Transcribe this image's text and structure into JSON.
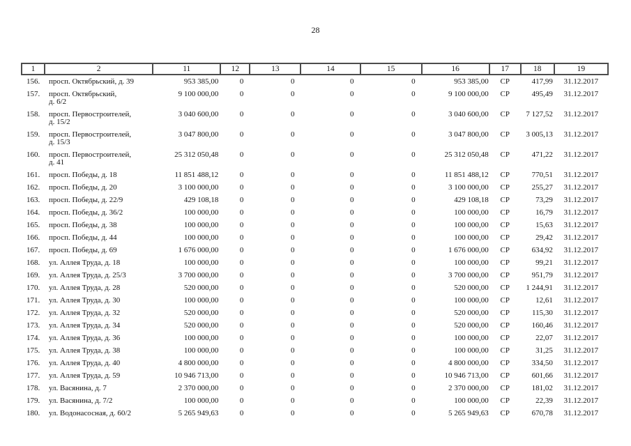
{
  "page": {
    "number": "28"
  },
  "table": {
    "headers": [
      "1",
      "2",
      "11",
      "12",
      "13",
      "14",
      "15",
      "16",
      "17",
      "18",
      "19"
    ],
    "rows": [
      {
        "cells": [
          "156.",
          "просп. Октябрьский, д. 39",
          "953 385,00",
          "0",
          "0",
          "0",
          "0",
          "953 385,00",
          "СР",
          "417,99",
          "31.12.2017"
        ]
      },
      {
        "cells": [
          "157.",
          "просп. Октябрьский,\nд. 6/2",
          "9 100 000,00",
          "0",
          "0",
          "0",
          "0",
          "9 100 000,00",
          "СР",
          "495,49",
          "31.12.2017"
        ]
      },
      {
        "cells": [
          "158.",
          "просп. Первостроителей,\nд. 15/2",
          "3 040 600,00",
          "0",
          "0",
          "0",
          "0",
          "3 040 600,00",
          "СР",
          "7 127,52",
          "31.12.2017"
        ]
      },
      {
        "cells": [
          "159.",
          "просп. Первостроителей,\nд. 15/3",
          "3 047 800,00",
          "0",
          "0",
          "0",
          "0",
          "3 047 800,00",
          "СР",
          "3 005,13",
          "31.12.2017"
        ]
      },
      {
        "cells": [
          "160.",
          "просп. Первостроителей,\nд. 41",
          "25 312 050,48",
          "0",
          "0",
          "0",
          "0",
          "25 312 050,48",
          "СР",
          "471,22",
          "31.12.2017"
        ]
      },
      {
        "cells": [
          "161.",
          "просп. Победы, д. 18",
          "11 851 488,12",
          "0",
          "0",
          "0",
          "0",
          "11 851 488,12",
          "СР",
          "770,51",
          "31.12.2017"
        ]
      },
      {
        "cells": [
          "162.",
          "просп. Победы, д. 20",
          "3 100 000,00",
          "0",
          "0",
          "0",
          "0",
          "3 100 000,00",
          "СР",
          "255,27",
          "31.12.2017"
        ]
      },
      {
        "cells": [
          "163.",
          "просп. Победы, д. 22/9",
          "429 108,18",
          "0",
          "0",
          "0",
          "0",
          "429 108,18",
          "СР",
          "73,29",
          "31.12.2017"
        ]
      },
      {
        "cells": [
          "164.",
          "просп. Победы, д. 36/2",
          "100 000,00",
          "0",
          "0",
          "0",
          "0",
          "100 000,00",
          "СР",
          "16,79",
          "31.12.2017"
        ]
      },
      {
        "cells": [
          "165.",
          "просп. Победы, д. 38",
          "100 000,00",
          "0",
          "0",
          "0",
          "0",
          "100 000,00",
          "СР",
          "15,63",
          "31.12.2017"
        ]
      },
      {
        "cells": [
          "166.",
          "просп. Победы, д. 44",
          "100 000,00",
          "0",
          "0",
          "0",
          "0",
          "100 000,00",
          "СР",
          "29,42",
          "31.12.2017"
        ]
      },
      {
        "cells": [
          "167.",
          "просп. Победы, д. 69",
          "1 676 000,00",
          "0",
          "0",
          "0",
          "0",
          "1 676 000,00",
          "СР",
          "634,92",
          "31.12.2017"
        ]
      },
      {
        "cells": [
          "168.",
          "ул. Аллея Труда, д. 18",
          "100 000,00",
          "0",
          "0",
          "0",
          "0",
          "100 000,00",
          "СР",
          "99,21",
          "31.12.2017"
        ]
      },
      {
        "cells": [
          "169.",
          "ул. Аллея Труда, д. 25/3",
          "3 700 000,00",
          "0",
          "0",
          "0",
          "0",
          "3 700 000,00",
          "СР",
          "951,79",
          "31.12.2017"
        ]
      },
      {
        "cells": [
          "170.",
          "ул. Аллея Труда, д. 28",
          "520 000,00",
          "0",
          "0",
          "0",
          "0",
          "520 000,00",
          "СР",
          "1 244,91",
          "31.12.2017"
        ]
      },
      {
        "cells": [
          "171.",
          "ул. Аллея Труда, д. 30",
          "100 000,00",
          "0",
          "0",
          "0",
          "0",
          "100 000,00",
          "СР",
          "12,61",
          "31.12.2017"
        ]
      },
      {
        "cells": [
          "172.",
          "ул. Аллея Труда, д. 32",
          "520 000,00",
          "0",
          "0",
          "0",
          "0",
          "520 000,00",
          "СР",
          "115,30",
          "31.12.2017"
        ]
      },
      {
        "cells": [
          "173.",
          "ул. Аллея Труда, д. 34",
          "520 000,00",
          "0",
          "0",
          "0",
          "0",
          "520 000,00",
          "СР",
          "160,46",
          "31.12.2017"
        ]
      },
      {
        "cells": [
          "174.",
          "ул. Аллея Труда, д. 36",
          "100 000,00",
          "0",
          "0",
          "0",
          "0",
          "100 000,00",
          "СР",
          "22,07",
          "31.12.2017"
        ]
      },
      {
        "cells": [
          "175.",
          "ул. Аллея Труда, д. 38",
          "100 000,00",
          "0",
          "0",
          "0",
          "0",
          "100 000,00",
          "СР",
          "31,25",
          "31.12.2017"
        ]
      },
      {
        "cells": [
          "176.",
          "ул. Аллея Труда, д. 40",
          "4 800 000,00",
          "0",
          "0",
          "0",
          "0",
          "4 800 000,00",
          "СР",
          "334,50",
          "31.12.2017"
        ]
      },
      {
        "cells": [
          "177.",
          "ул. Аллея Труда, д. 59",
          "10 946 713,00",
          "0",
          "0",
          "0",
          "0",
          "10 946 713,00",
          "СР",
          "601,66",
          "31.12.2017"
        ]
      },
      {
        "cells": [
          "178.",
          "ул. Васянина, д. 7",
          "2 370 000,00",
          "0",
          "0",
          "0",
          "0",
          "2 370 000,00",
          "СР",
          "181,02",
          "31.12.2017"
        ]
      },
      {
        "cells": [
          "179.",
          "ул. Васянина, д. 7/2",
          "100 000,00",
          "0",
          "0",
          "0",
          "0",
          "100 000,00",
          "СР",
          "22,39",
          "31.12.2017"
        ]
      },
      {
        "cells": [
          "180.",
          "ул. Водонасосная, д. 60/2",
          "5 265 949,63",
          "0",
          "0",
          "0",
          "0",
          "5 265 949,63",
          "СР",
          "670,78",
          "31.12.2017"
        ]
      }
    ]
  }
}
